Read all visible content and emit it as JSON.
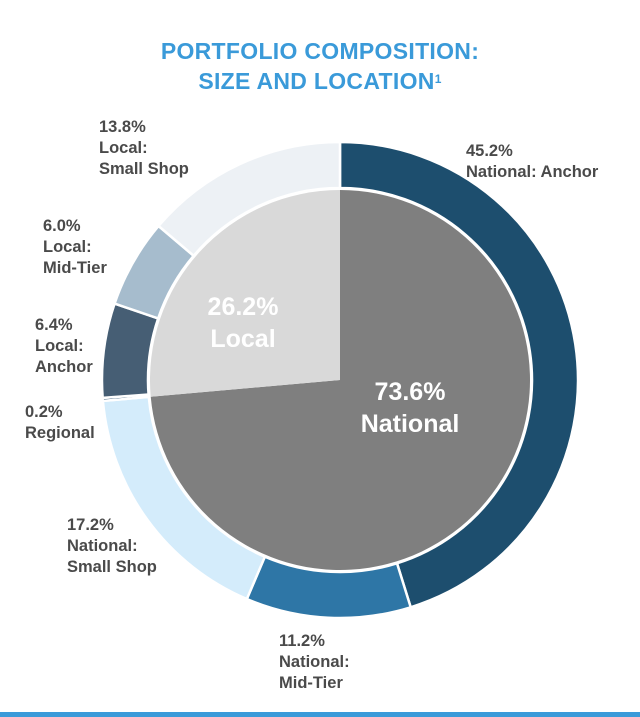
{
  "title": {
    "line1": "PORTFOLIO COMPOSITION:",
    "line2": "SIZE AND LOCATION",
    "footnote_mark": "1"
  },
  "chart_data": [
    {
      "type": "pie",
      "role": "inner",
      "categories": [
        "National",
        "Local"
      ],
      "values": [
        73.6,
        26.2
      ],
      "labels": [
        "73.6%\nNational",
        "26.2%\nLocal"
      ],
      "colors": [
        "#7f7f7f",
        "#d9d9d9"
      ]
    },
    {
      "type": "pie",
      "role": "outer-ring",
      "categories": [
        "National: Anchor",
        "National: Mid-Tier",
        "National: Small Shop",
        "Regional",
        "Local: Anchor",
        "Local: Mid-Tier",
        "Local: Small Shop"
      ],
      "values": [
        45.2,
        11.2,
        17.2,
        0.2,
        6.4,
        6.0,
        13.8
      ],
      "labels": [
        "45.2%\nNational: Anchor",
        "11.2%\nNational:\nMid-Tier",
        "17.2%\nNational:\nSmall Shop",
        "0.2%\nRegional",
        "6.4%\nLocal:\nAnchor",
        "6.0%\nLocal:\nMid-Tier",
        "13.8%\nLocal:\nSmall Shop"
      ],
      "colors": [
        "#1d4e6e",
        "#2e76a6",
        "#d4ecfb",
        "#254a6a",
        "#465e74",
        "#a6bccd",
        "#edf1f5"
      ]
    }
  ]
}
